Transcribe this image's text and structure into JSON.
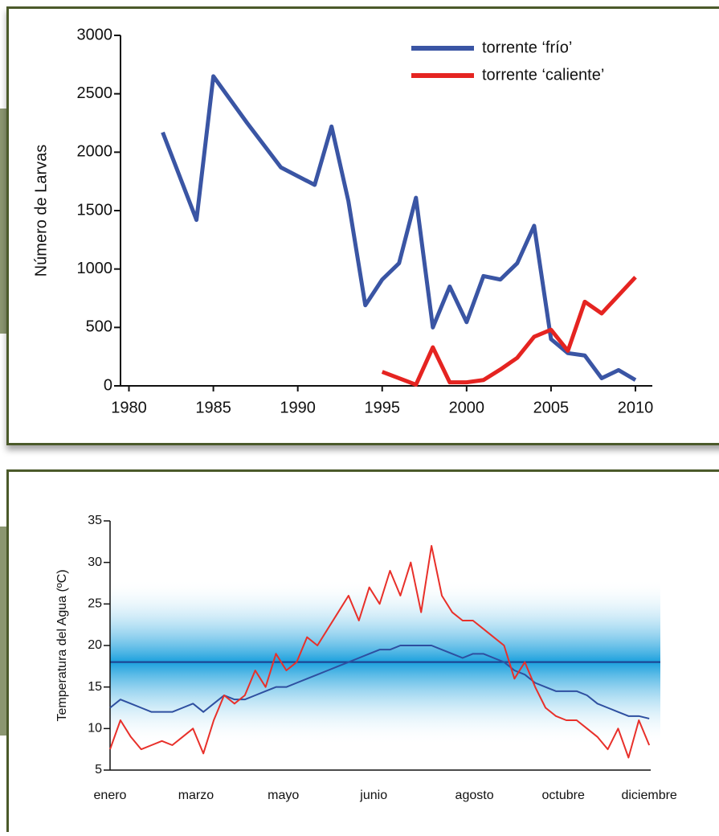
{
  "chart_data": [
    {
      "type": "line",
      "y_label": "Número de Larvas",
      "xlim": [
        1979.5,
        2011
      ],
      "xticks": [
        1980,
        1985,
        1990,
        1995,
        2000,
        2005,
        2010
      ],
      "ylim": [
        0,
        3000
      ],
      "yticks": [
        0,
        500,
        1000,
        1500,
        2000,
        2500,
        3000
      ],
      "legend": "top-right",
      "series": [
        {
          "name": "torrente ‘frío’",
          "color": "#3a55a4",
          "x": [
            1982,
            1984,
            1985,
            1987,
            1989,
            1991,
            1992,
            1993,
            1994,
            1995,
            1996,
            1997,
            1998,
            1999,
            2000,
            2001,
            2002,
            2003,
            2004,
            2005,
            2006,
            2007,
            2008,
            2009,
            2010
          ],
          "values": [
            2170,
            1420,
            2650,
            2250,
            1870,
            1720,
            2220,
            1580,
            690,
            910,
            1050,
            1610,
            500,
            850,
            545,
            940,
            910,
            1050,
            1370,
            400,
            280,
            260,
            65,
            135,
            50
          ]
        },
        {
          "name": "torrente ‘caliente’",
          "color": "#e52421",
          "x": [
            1995,
            1997,
            1998,
            1999,
            2000,
            2001,
            2002,
            2003,
            2004,
            2005,
            2006,
            2007,
            2008,
            2010
          ],
          "values": [
            120,
            10,
            330,
            30,
            30,
            50,
            140,
            240,
            420,
            480,
            300,
            720,
            620,
            930
          ]
        }
      ]
    },
    {
      "type": "line",
      "y_label": "Temperatura del Agua (ºC)",
      "xlim": [
        0,
        365
      ],
      "xticks": [
        {
          "value": 0,
          "label": "enero"
        },
        {
          "value": 58,
          "label": "marzo"
        },
        {
          "value": 117,
          "label": "mayo"
        },
        {
          "value": 178,
          "label": "junio"
        },
        {
          "value": 246,
          "label": "agosto"
        },
        {
          "value": 306,
          "label": "octubre"
        },
        {
          "value": 364,
          "label": "diciembre"
        }
      ],
      "ylim": [
        5,
        35
      ],
      "yticks": [
        5,
        10,
        15,
        20,
        25,
        30,
        35
      ],
      "band": [
        8,
        28
      ],
      "band_color": "#1ba0dd",
      "hline": 18,
      "hline_color": "#1d3f8f",
      "x": [
        0,
        7,
        14,
        21,
        28,
        35,
        42,
        49,
        56,
        63,
        70,
        77,
        84,
        91,
        98,
        105,
        112,
        119,
        126,
        133,
        140,
        147,
        154,
        161,
        168,
        175,
        182,
        189,
        196,
        203,
        210,
        217,
        224,
        231,
        238,
        245,
        252,
        259,
        266,
        273,
        280,
        287,
        294,
        301,
        308,
        315,
        322,
        329,
        336,
        343,
        350,
        357,
        364
      ],
      "series": [
        {
          "color": "#2e4fa0",
          "values": [
            12.5,
            13.5,
            13,
            12.5,
            12,
            12,
            12,
            12.5,
            13,
            12,
            13,
            14,
            13.5,
            13.5,
            14,
            14.5,
            15,
            15,
            15.5,
            16,
            16.5,
            17,
            17.5,
            18,
            18.5,
            19,
            19.5,
            19.5,
            20,
            20,
            20,
            20,
            19.5,
            19,
            18.5,
            19,
            19,
            18.5,
            18,
            17,
            16.5,
            15.5,
            15,
            14.5,
            14.5,
            14.5,
            14,
            13,
            12.5,
            12,
            11.5,
            11.5,
            11.2
          ]
        },
        {
          "color": "#e8302a",
          "values": [
            7.5,
            11,
            9,
            7.5,
            8,
            8.5,
            8,
            9,
            10,
            7,
            11,
            14,
            13,
            14,
            17,
            15,
            19,
            17,
            18,
            21,
            20,
            22,
            24,
            26,
            23,
            27,
            25,
            29,
            26,
            30,
            24,
            32,
            26,
            24,
            23,
            23,
            22,
            21,
            20,
            16,
            18,
            15,
            12.5,
            11.5,
            11,
            11,
            10,
            9,
            7.5,
            10,
            6.5,
            11,
            8
          ]
        }
      ]
    }
  ]
}
